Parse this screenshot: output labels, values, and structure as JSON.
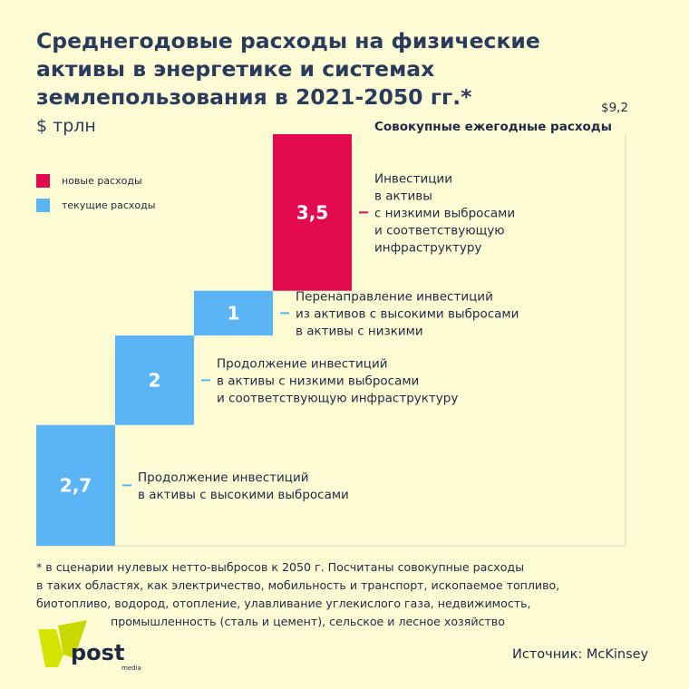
{
  "title": "Среднегодовые расходы на физические активы в энергетике и системах землепользования в 2021-2050 гг.*",
  "unit": "$ трлн",
  "total": {
    "label": "Совокупные ежегодные расходы",
    "value": "$9,2"
  },
  "legend": [
    {
      "label": "новые расходы",
      "color": "#e30b4f"
    },
    {
      "label": "текущие расходы",
      "color": "#5bb4f4"
    }
  ],
  "chart_data": {
    "type": "bar",
    "title": "Среднегодовые расходы на физические активы в энергетике и системах землепользования в 2021-2050 гг.*",
    "xlabel": "",
    "ylabel": "$ трлн",
    "total": 9.2,
    "ylim": [
      0,
      9.2
    ],
    "segments": [
      {
        "value": 2.7,
        "value_label": "2,7",
        "category": "текущие расходы",
        "color": "#5bb4f4",
        "label_lines": [
          "Продолжение инвестиций",
          "в активы с высокими выбросами"
        ]
      },
      {
        "value": 2,
        "value_label": "2",
        "category": "текущие расходы",
        "color": "#5bb4f4",
        "label_lines": [
          "Продолжение инвестиций",
          "в активы с низкими выбросами",
          "и соответствующую инфраструктуру"
        ]
      },
      {
        "value": 1,
        "value_label": "1",
        "category": "текущие расходы",
        "color": "#5bb4f4",
        "label_lines": [
          "Перенаправление инвестиций",
          "из активов с высокими выбросами",
          "в активы с низкими"
        ]
      },
      {
        "value": 3.5,
        "value_label": "3,5",
        "category": "новые расходы",
        "color": "#e30b4f",
        "label_lines": [
          "Инвестиции",
          "в активы",
          "с низкими выбросами",
          "и соответствующую",
          "инфраструктуру"
        ]
      }
    ],
    "legend_position": "top-left",
    "grid": false
  },
  "footnote": [
    "* в сценарии нулевых нетто-выбросов к 2050 г. Посчитаны совокупные расходы",
    "в таких областях, как электричество, мобильность и транспорт, ископаемое топливо,",
    "биотопливо, водород, отопление, улавливание углекислого газа, недвижимость,",
    "промышленность (сталь и цемент), сельское и лесное хозяйство"
  ],
  "logo": {
    "main": "post",
    "sub": "media"
  },
  "source": "Источник: McKinsey"
}
